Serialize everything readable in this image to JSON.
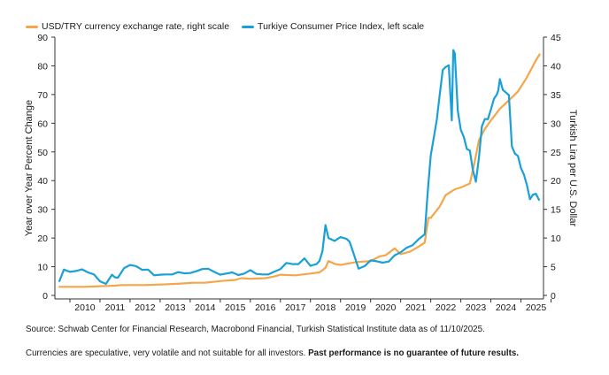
{
  "legend": {
    "usd_try": "USD/TRY currency exchange rate, right scale",
    "cpi": "Turkiye Consumer Price Index, left scale"
  },
  "colors": {
    "usd_try": "#F5A54A",
    "cpi": "#1AA0D8"
  },
  "notes": {
    "source": "Source: Schwab Center for Financial Research, Macrobond Financial, Turkish Statistical Institute data as of 11/10/2025.",
    "disclaimer_plain": "Currencies are speculative, very volatile and not suitable for all investors. ",
    "disclaimer_bold": "Past performance is no guarantee of future results."
  },
  "chart_data": {
    "type": "line",
    "ylabel": "Year over Year Percent Change",
    "y2label": "Turkish Lira per U.S. Dollar",
    "ylim": [
      0,
      90
    ],
    "y2lim": [
      0,
      45
    ],
    "yticks": [
      "0",
      "10",
      "20",
      "30",
      "40",
      "50",
      "60",
      "70",
      "80",
      "90"
    ],
    "y2ticks": [
      "0",
      "5",
      "10",
      "15",
      "20",
      "25",
      "30",
      "35",
      "40",
      "45"
    ],
    "xticks": [
      "2010",
      "2011",
      "2012",
      "2013",
      "2014",
      "2015",
      "2016",
      "2017",
      "2018",
      "2019",
      "2020",
      "2021",
      "2022",
      "2023",
      "2024",
      "2025"
    ],
    "xlim": [
      2009.5,
      2025.75
    ],
    "grid": false,
    "legend_position": "top-left",
    "series": [
      {
        "name": "USD/TRY currency exchange rate, right scale",
        "axis": "right",
        "x": [
          2009.65,
          2010.0,
          2010.5,
          2011.0,
          2011.5,
          2011.7,
          2012.0,
          2012.5,
          2013.0,
          2013.5,
          2013.8,
          2014.1,
          2014.5,
          2015.0,
          2015.5,
          2015.7,
          2016.0,
          2016.5,
          2016.8,
          2017.0,
          2017.5,
          2018.0,
          2018.3,
          2018.5,
          2018.6,
          2018.8,
          2019.0,
          2019.3,
          2019.5,
          2019.8,
          2020.0,
          2020.3,
          2020.5,
          2020.8,
          2021.0,
          2021.3,
          2021.6,
          2021.8,
          2021.92,
          2022.0,
          2022.3,
          2022.5,
          2022.8,
          2023.0,
          2023.3,
          2023.45,
          2023.6,
          2023.8,
          2024.0,
          2024.3,
          2024.6,
          2024.9,
          2025.2,
          2025.5,
          2025.62
        ],
        "y": [
          1.5,
          1.5,
          1.5,
          1.6,
          1.7,
          1.8,
          1.8,
          1.8,
          1.9,
          2.0,
          2.1,
          2.2,
          2.2,
          2.5,
          2.7,
          3.0,
          2.9,
          3.0,
          3.3,
          3.6,
          3.5,
          3.8,
          4.0,
          4.8,
          6.0,
          5.5,
          5.3,
          5.6,
          5.8,
          5.9,
          6.0,
          6.8,
          7.0,
          8.2,
          7.2,
          7.6,
          8.5,
          9.2,
          13.5,
          13.5,
          15.5,
          17.5,
          18.5,
          18.8,
          19.5,
          23.0,
          27.0,
          29.0,
          30.5,
          32.5,
          34.0,
          35.5,
          38.0,
          41.0,
          42.0
        ]
      },
      {
        "name": "Turkiye Consumer Price Index, left scale",
        "axis": "left",
        "x": [
          2009.65,
          2009.8,
          2010.0,
          2010.2,
          2010.4,
          2010.6,
          2010.8,
          2011.0,
          2011.2,
          2011.4,
          2011.5,
          2011.6,
          2011.8,
          2012.0,
          2012.2,
          2012.4,
          2012.6,
          2012.8,
          2013.0,
          2013.2,
          2013.4,
          2013.6,
          2013.8,
          2014.0,
          2014.2,
          2014.4,
          2014.6,
          2014.8,
          2015.0,
          2015.2,
          2015.4,
          2015.6,
          2015.8,
          2016.0,
          2016.2,
          2016.4,
          2016.6,
          2016.8,
          2017.0,
          2017.2,
          2017.4,
          2017.6,
          2017.8,
          2018.0,
          2018.2,
          2018.3,
          2018.4,
          2018.5,
          2018.6,
          2018.8,
          2019.0,
          2019.2,
          2019.3,
          2019.4,
          2019.6,
          2019.8,
          2020.0,
          2020.2,
          2020.4,
          2020.6,
          2020.8,
          2021.0,
          2021.2,
          2021.4,
          2021.6,
          2021.8,
          2021.9,
          2022.0,
          2022.2,
          2022.3,
          2022.4,
          2022.5,
          2022.6,
          2022.7,
          2022.75,
          2022.8,
          2022.9,
          2023.0,
          2023.1,
          2023.2,
          2023.3,
          2023.4,
          2023.5,
          2023.6,
          2023.7,
          2023.8,
          2023.9,
          2024.0,
          2024.1,
          2024.2,
          2024.25,
          2024.3,
          2024.4,
          2024.6,
          2024.7,
          2024.8,
          2024.9,
          2025.0,
          2025.1,
          2025.2,
          2025.3,
          2025.4,
          2025.5,
          2025.6
        ],
        "y": [
          5.0,
          9.0,
          8.2,
          8.5,
          9.1,
          8.0,
          7.3,
          4.9,
          4.0,
          7.2,
          6.3,
          6.2,
          9.5,
          10.6,
          10.2,
          8.9,
          9.0,
          7.0,
          7.2,
          7.3,
          7.3,
          8.1,
          7.7,
          7.8,
          8.4,
          9.2,
          9.3,
          8.2,
          7.2,
          7.6,
          8.0,
          7.1,
          7.6,
          8.8,
          7.5,
          7.3,
          7.3,
          8.3,
          9.2,
          11.3,
          10.9,
          10.9,
          12.9,
          10.3,
          10.9,
          12.0,
          15.4,
          24.5,
          20.0,
          19.0,
          20.3,
          19.7,
          18.7,
          15.7,
          9.3,
          10.2,
          12.2,
          11.9,
          11.4,
          11.8,
          14.0,
          15.0,
          16.6,
          17.5,
          19.6,
          21.3,
          36.1,
          48.7,
          61.1,
          70.0,
          78.6,
          79.6,
          80.2,
          61.0,
          85.5,
          84.4,
          64.3,
          57.7,
          55.2,
          51.0,
          50.5,
          43.7,
          39.6,
          47.8,
          58.9,
          61.5,
          61.4,
          64.8,
          68.5,
          70.0,
          71.6,
          75.4,
          71.6,
          69.8,
          51.9,
          49.4,
          48.6,
          44.4,
          42.1,
          38.4,
          33.5,
          35.1,
          35.4,
          33.3
        ]
      }
    ]
  }
}
